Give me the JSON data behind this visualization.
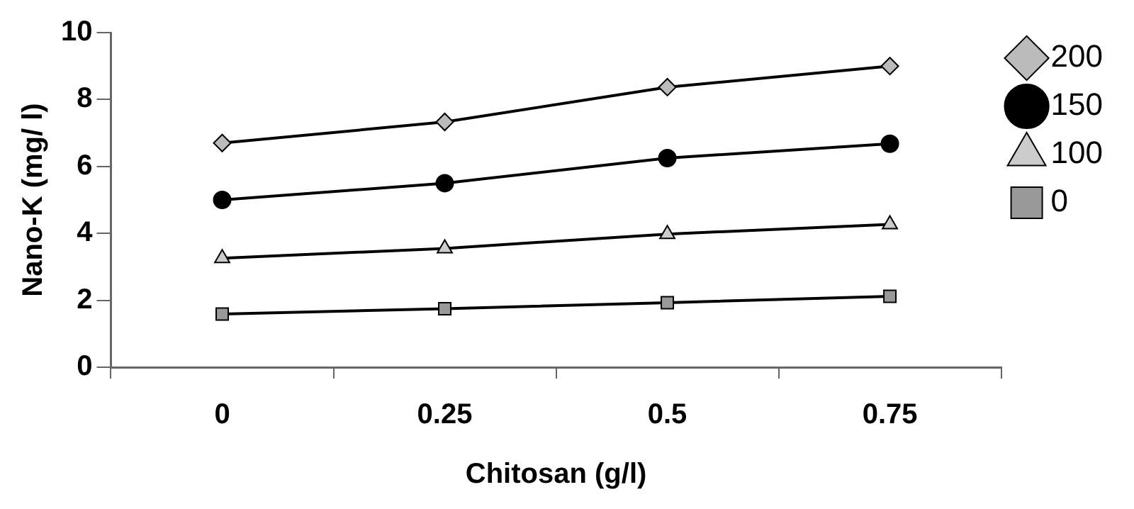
{
  "chart_data": {
    "type": "line",
    "xlabel": "Chitosan (g/l)",
    "ylabel": "Nano-K (mg/ l)",
    "categories": [
      "0",
      "0.25",
      "0.5",
      "0.75"
    ],
    "ylim": [
      0,
      10
    ],
    "yticks": [
      0,
      2,
      4,
      6,
      8,
      10
    ],
    "grid": false,
    "legend": "right",
    "line_style": "solid",
    "series": [
      {
        "name": "200",
        "color": "#000000",
        "marker": "diamond",
        "values": [
          6.7,
          7.33,
          8.37,
          9.0
        ]
      },
      {
        "name": "150",
        "color": "#000000",
        "marker": "circle",
        "values": [
          5.0,
          5.5,
          6.25,
          6.68
        ]
      },
      {
        "name": "100",
        "color": "#000000",
        "marker": "triangle",
        "values": [
          3.26,
          3.55,
          3.98,
          4.27
        ]
      },
      {
        "name": "0",
        "color": "#000000",
        "marker": "square",
        "values": [
          1.59,
          1.75,
          1.93,
          2.12
        ]
      }
    ]
  }
}
